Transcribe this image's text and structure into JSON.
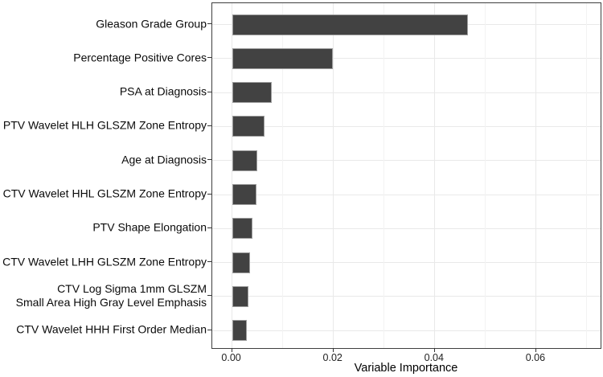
{
  "chart_data": {
    "type": "bar",
    "orientation": "horizontal",
    "title": "",
    "xlabel": "Variable Importance",
    "ylabel": "",
    "categories": [
      "Gleason Grade Group",
      "Percentage Positive Cores",
      "PSA at Diagnosis",
      "PTV Wavelet HLH GLSZM Zone Entropy",
      "Age at Diagnosis",
      "CTV Wavelet HHL GLSZM Zone Entropy",
      "PTV Shape Elongation",
      "CTV Wavelet LHH GLSZM Zone Entropy",
      "CTV Log Sigma 1mm GLSZM\nSmall Area High Gray Level Emphasis",
      "CTV Wavelet HHH First Order Median"
    ],
    "values": [
      0.0466,
      0.0199,
      0.0078,
      0.0064,
      0.005,
      0.0049,
      0.004,
      0.0035,
      0.0032,
      0.0029
    ],
    "xlim": [
      -0.0039,
      0.0727
    ],
    "xticks": [
      0.0,
      0.02,
      0.04,
      0.06
    ],
    "xtick_labels": [
      "0.00",
      "0.02",
      "0.04",
      "0.06"
    ],
    "xgrid_major": [
      0.0,
      0.02,
      0.04,
      0.06
    ],
    "xgrid_minor": [
      0.01,
      0.03,
      0.05,
      0.07
    ],
    "grid": true,
    "legend": false,
    "colors": {
      "bar_fill": "#424242",
      "bar_border": "#9e9e9e",
      "grid_major": "#e9e9e9",
      "grid_minor": "#f3f3f3",
      "panel_border": "#3f3f3f",
      "tick": "#333333",
      "text": "#0a0a0a"
    }
  }
}
